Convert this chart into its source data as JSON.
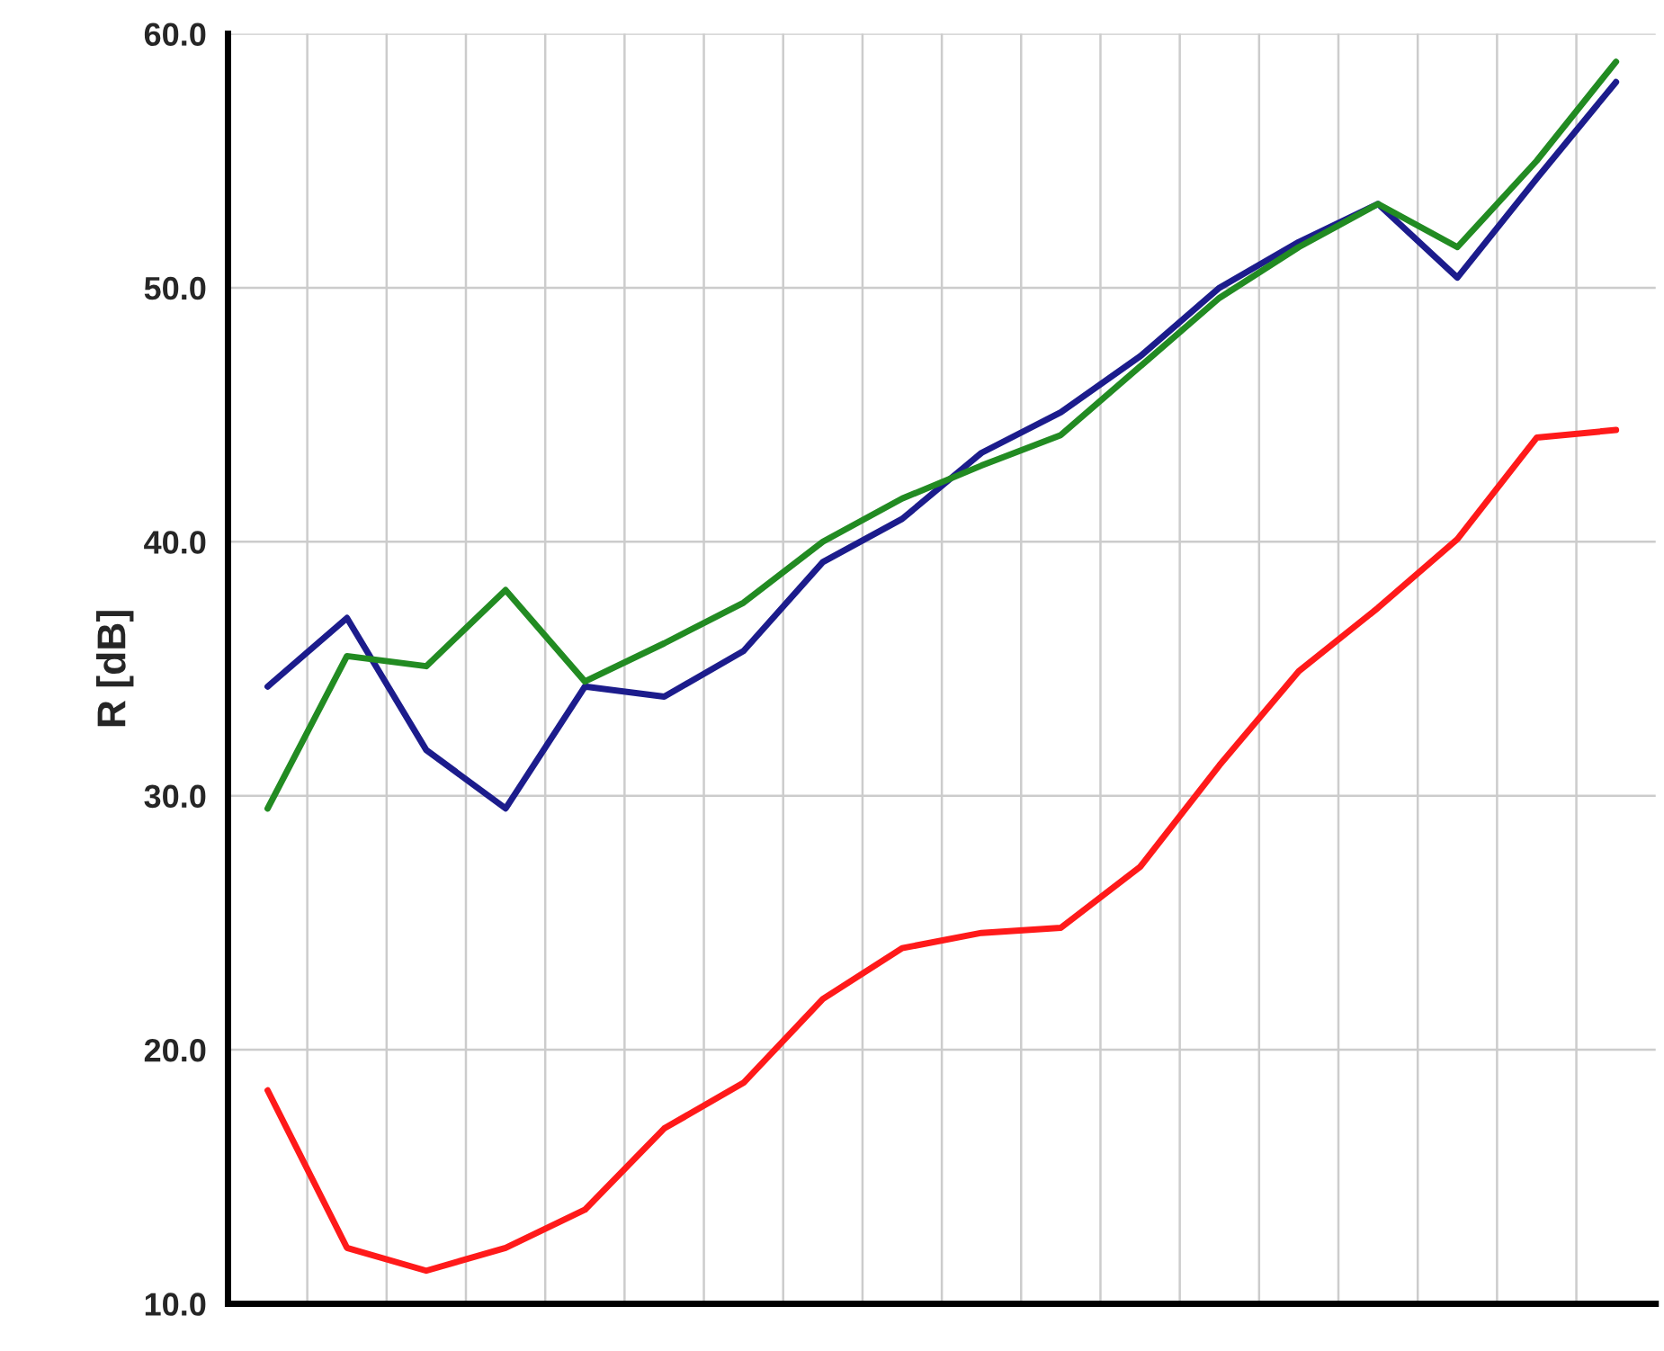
{
  "chart_data": {
    "type": "line",
    "ylabel": "R [dB]",
    "categories": [
      null,
      null,
      null,
      null,
      null,
      null,
      null,
      null,
      null,
      null,
      null,
      null,
      null,
      null,
      null,
      null,
      null,
      null
    ],
    "series": [
      {
        "color": "#1c1c8c",
        "values": [
          34.3,
          37.0,
          31.8,
          29.5,
          34.3,
          33.9,
          35.7,
          39.2,
          40.9,
          43.5,
          45.1,
          47.3,
          50.0,
          51.8,
          53.3,
          50.4,
          54.3,
          58.1
        ]
      },
      {
        "color": "#228b22",
        "values": [
          29.5,
          35.5,
          35.1,
          38.1,
          34.5,
          36.0,
          37.6,
          40.0,
          41.7,
          43.0,
          44.2,
          46.9,
          49.6,
          51.6,
          53.3,
          51.6,
          55.0,
          58.9
        ]
      },
      {
        "color": "#ff1a1a",
        "values": [
          18.4,
          12.2,
          11.3,
          12.2,
          13.7,
          16.9,
          18.7,
          22.0,
          24.0,
          24.6,
          24.8,
          27.2,
          31.2,
          34.9,
          37.4,
          40.1,
          44.1,
          44.4
        ]
      }
    ],
    "ylim": [
      10,
      60
    ],
    "yticks": [
      {
        "value": 10,
        "label": "10.0"
      },
      {
        "value": 20,
        "label": "20.0"
      },
      {
        "value": 30,
        "label": "30.0"
      },
      {
        "value": 40,
        "label": "40.0"
      },
      {
        "value": 50,
        "label": "50.0"
      },
      {
        "value": 60,
        "label": "60.0"
      }
    ],
    "grid": true,
    "tick_labels": "y",
    "line_style": "solid",
    "marker": "none"
  }
}
